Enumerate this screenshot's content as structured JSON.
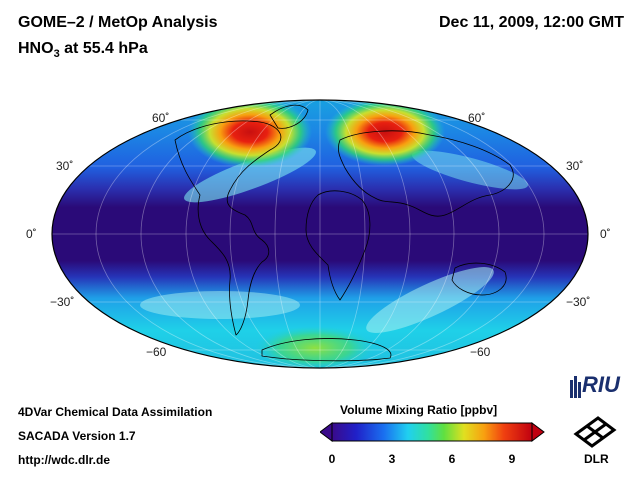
{
  "header": {
    "title": "GOME–2 / MetOp Analysis",
    "species": "HNO",
    "species_sub": "3",
    "level": "at 55.4 hPa",
    "datetime": "Dec 11, 2009, 12:00 GMT"
  },
  "map": {
    "projection": "Mollweide (global)",
    "lat_labels": [
      "60˚",
      "30˚",
      "0˚",
      "−30˚",
      "−60"
    ]
  },
  "colorbar": {
    "title": "Volume Mixing Ratio [ppbv]",
    "ticks": [
      "0",
      "3",
      "6",
      "9"
    ],
    "min": 0,
    "max": 10
  },
  "footer": {
    "line1": "4DVar Chemical Data Assimilation",
    "line2": "SACADA Version 1.7",
    "line3": "http://wdc.dlr.de"
  },
  "logos": {
    "riu": "RIU",
    "dlr": "DLR"
  },
  "colors": {
    "low": "#2a0a78",
    "mid": "#1fd0e8",
    "high": "#e0101a"
  }
}
